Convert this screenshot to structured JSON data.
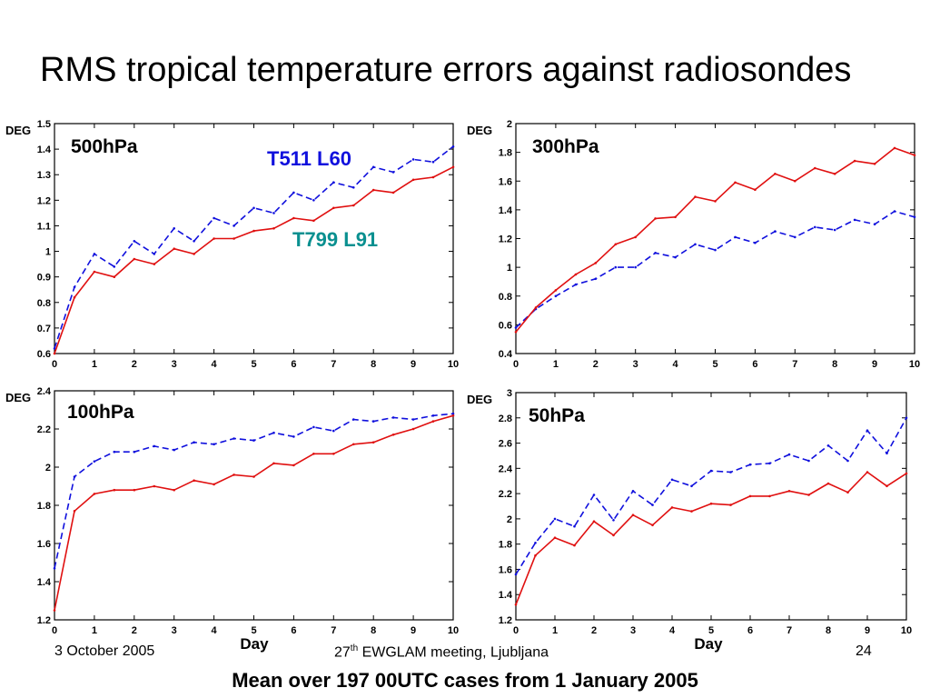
{
  "slide": {
    "title": "RMS tropical temperature errors against radiosondes",
    "footer_date": "3 October 2005",
    "footer_meeting_ordinal": "27",
    "footer_meeting_sup": "th",
    "footer_meeting_rest": " EWGLAM meeting, Ljubljana",
    "page_number": "24",
    "caption": "Mean over 197 00UTC cases from 1 January 2005"
  },
  "colors": {
    "T511 L60": "#1010dd",
    "T799 L91": "#e01010",
    "legend_T799_text": "#0a9090",
    "axis": "#000000"
  },
  "chart_data": [
    {
      "type": "line",
      "title": "500hPa",
      "ylabel": "DEG",
      "xlabel": "",
      "xlim": [
        0,
        10
      ],
      "ylim": [
        0.6,
        1.5
      ],
      "xticks": [
        "0",
        "1",
        "2",
        "3",
        "4",
        "5",
        "6",
        "7",
        "8",
        "9",
        "10"
      ],
      "yticks": [
        "0.6",
        "0.7",
        "0.8",
        "0.9",
        "1",
        "1.1",
        "1.2",
        "1.3",
        "1.4",
        "1.5"
      ],
      "grid": false,
      "x": [
        0,
        0.5,
        1,
        1.5,
        2,
        2.5,
        3,
        3.5,
        4,
        4.5,
        5,
        5.5,
        6,
        6.5,
        7,
        7.5,
        8,
        8.5,
        9,
        9.5,
        10
      ],
      "series": [
        {
          "name": "T511 L60",
          "style": "dashed",
          "values": [
            0.62,
            0.86,
            0.99,
            0.94,
            1.04,
            0.99,
            1.09,
            1.04,
            1.13,
            1.1,
            1.17,
            1.15,
            1.23,
            1.2,
            1.27,
            1.25,
            1.33,
            1.31,
            1.36,
            1.35,
            1.41
          ]
        },
        {
          "name": "T799 L91",
          "style": "solid",
          "values": [
            0.6,
            0.82,
            0.92,
            0.9,
            0.97,
            0.95,
            1.01,
            0.99,
            1.05,
            1.05,
            1.08,
            1.09,
            1.13,
            1.12,
            1.17,
            1.18,
            1.24,
            1.23,
            1.28,
            1.29,
            1.33
          ]
        }
      ],
      "legend": [
        {
          "label": "T511 L60",
          "color": "#1010dd"
        },
        {
          "label": "T799 L91",
          "color": "#0a9090"
        }
      ]
    },
    {
      "type": "line",
      "title": "300hPa",
      "ylabel": "DEG",
      "xlabel": "",
      "xlim": [
        0,
        10
      ],
      "ylim": [
        0.4,
        2
      ],
      "xticks": [
        "0",
        "1",
        "2",
        "3",
        "4",
        "5",
        "6",
        "7",
        "8",
        "9",
        "10"
      ],
      "yticks": [
        "0.4",
        "0.6",
        "0.8",
        "1",
        "1.2",
        "1.4",
        "1.6",
        "1.8",
        "2"
      ],
      "grid": false,
      "x": [
        0,
        0.5,
        1,
        1.5,
        2,
        2.5,
        3,
        3.5,
        4,
        4.5,
        5,
        5.5,
        6,
        6.5,
        7,
        7.5,
        8,
        8.5,
        9,
        9.5,
        10
      ],
      "series": [
        {
          "name": "T511 L60",
          "style": "dashed",
          "values": [
            0.58,
            0.71,
            0.8,
            0.88,
            0.92,
            1.0,
            1.0,
            1.1,
            1.07,
            1.16,
            1.12,
            1.21,
            1.17,
            1.25,
            1.21,
            1.28,
            1.26,
            1.33,
            1.3,
            1.39,
            1.35
          ]
        },
        {
          "name": "T799 L91",
          "style": "solid",
          "values": [
            0.55,
            0.72,
            0.84,
            0.95,
            1.03,
            1.16,
            1.21,
            1.34,
            1.35,
            1.49,
            1.46,
            1.59,
            1.54,
            1.65,
            1.6,
            1.69,
            1.65,
            1.74,
            1.72,
            1.83,
            1.78
          ]
        }
      ]
    },
    {
      "type": "line",
      "title": "100hPa",
      "ylabel": "DEG",
      "xlabel": "Day",
      "xlim": [
        0,
        10
      ],
      "ylim": [
        1.2,
        2.4
      ],
      "xticks": [
        "0",
        "1",
        "2",
        "3",
        "4",
        "5",
        "6",
        "7",
        "8",
        "9",
        "10"
      ],
      "yticks": [
        "1.2",
        "1.4",
        "1.6",
        "1.8",
        "2",
        "2.2",
        "2.4"
      ],
      "grid": false,
      "x": [
        0,
        0.5,
        1,
        1.5,
        2,
        2.5,
        3,
        3.5,
        4,
        4.5,
        5,
        5.5,
        6,
        6.5,
        7,
        7.5,
        8,
        8.5,
        9,
        9.5,
        10
      ],
      "series": [
        {
          "name": "T511 L60",
          "style": "dashed",
          "values": [
            1.47,
            1.95,
            2.03,
            2.08,
            2.08,
            2.11,
            2.09,
            2.13,
            2.12,
            2.15,
            2.14,
            2.18,
            2.16,
            2.21,
            2.19,
            2.25,
            2.24,
            2.26,
            2.25,
            2.27,
            2.28
          ]
        },
        {
          "name": "T799 L91",
          "style": "solid",
          "values": [
            1.25,
            1.77,
            1.86,
            1.88,
            1.88,
            1.9,
            1.88,
            1.93,
            1.91,
            1.96,
            1.95,
            2.02,
            2.01,
            2.07,
            2.07,
            2.12,
            2.13,
            2.17,
            2.2,
            2.24,
            2.27
          ]
        }
      ]
    },
    {
      "type": "line",
      "title": "50hPa",
      "ylabel": "DEG",
      "xlabel": "Day",
      "xlim": [
        0,
        10
      ],
      "ylim": [
        1.2,
        3
      ],
      "xticks": [
        "0",
        "1",
        "2",
        "3",
        "4",
        "5",
        "6",
        "7",
        "8",
        "9",
        "10"
      ],
      "yticks": [
        "1.2",
        "1.4",
        "1.6",
        "1.8",
        "2",
        "2.2",
        "2.4",
        "2.6",
        "2.8",
        "3"
      ],
      "grid": false,
      "x": [
        0,
        0.5,
        1,
        1.5,
        2,
        2.5,
        3,
        3.5,
        4,
        4.5,
        5,
        5.5,
        6,
        6.5,
        7,
        7.5,
        8,
        8.5,
        9,
        9.5,
        10
      ],
      "series": [
        {
          "name": "T511 L60",
          "style": "dashed",
          "values": [
            1.56,
            1.81,
            2.0,
            1.94,
            2.19,
            1.99,
            2.22,
            2.11,
            2.31,
            2.26,
            2.38,
            2.37,
            2.43,
            2.44,
            2.51,
            2.46,
            2.58,
            2.46,
            2.7,
            2.52,
            2.8
          ]
        },
        {
          "name": "T799 L91",
          "style": "solid",
          "values": [
            1.32,
            1.71,
            1.85,
            1.79,
            1.98,
            1.87,
            2.03,
            1.95,
            2.09,
            2.06,
            2.12,
            2.11,
            2.18,
            2.18,
            2.22,
            2.19,
            2.28,
            2.21,
            2.37,
            2.26,
            2.36
          ]
        }
      ]
    }
  ]
}
